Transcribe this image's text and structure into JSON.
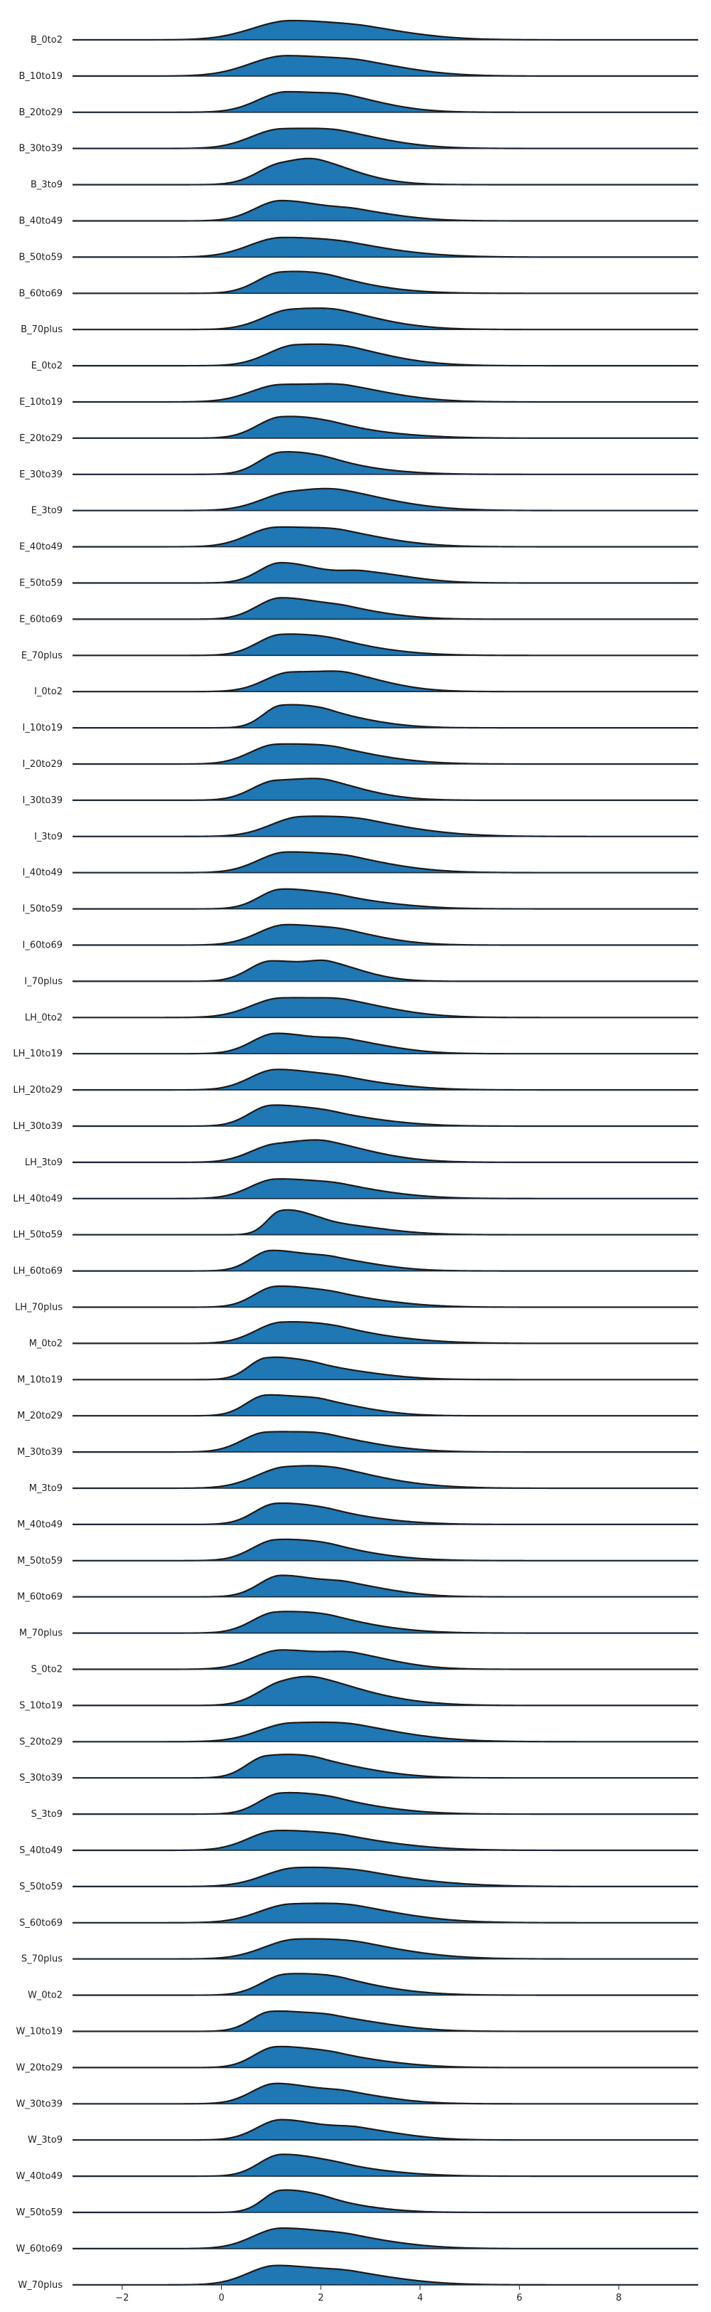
{
  "chart_data": {
    "type": "ridgeline",
    "title": "",
    "xlabel": "",
    "ylabel": "",
    "xlim": [
      -3,
      9.6
    ],
    "x_ticks": [
      -2,
      0,
      2,
      4,
      6,
      8
    ],
    "x_tick_labels": [
      "−2",
      "0",
      "2",
      "4",
      "6",
      "8"
    ],
    "fill_color": "#1f77b4",
    "line_color": "#1a1a1a",
    "grid": false,
    "series": [
      {
        "name": "B_0to2",
        "peaks": [
          [
            1.4,
            0.9,
            0.95
          ],
          [
            3.0,
            0.15,
            0.7
          ]
        ]
      },
      {
        "name": "B_10to19",
        "peaks": [
          [
            1.3,
            0.95,
            0.9
          ],
          [
            2.9,
            0.25,
            0.7
          ]
        ]
      },
      {
        "name": "B_20to29",
        "peaks": [
          [
            1.3,
            0.95,
            0.7
          ],
          [
            2.6,
            0.35,
            0.6
          ]
        ]
      },
      {
        "name": "B_30to39",
        "peaks": [
          [
            1.2,
            0.9,
            0.75
          ],
          [
            2.5,
            0.35,
            0.7
          ]
        ]
      },
      {
        "name": "B_3to9",
        "peaks": [
          [
            1.2,
            0.9,
            0.6
          ],
          [
            2.0,
            0.55,
            0.6
          ]
        ]
      },
      {
        "name": "B_40to49",
        "peaks": [
          [
            1.2,
            0.95,
            0.65
          ],
          [
            2.8,
            0.3,
            0.6
          ]
        ]
      },
      {
        "name": "B_50to59",
        "peaks": [
          [
            1.2,
            0.9,
            0.8
          ],
          [
            2.7,
            0.25,
            0.8
          ]
        ]
      },
      {
        "name": "B_60to69",
        "peaks": [
          [
            1.2,
            0.95,
            0.6
          ],
          [
            2.3,
            0.35,
            0.7
          ]
        ]
      },
      {
        "name": "B_70plus",
        "peaks": [
          [
            1.4,
            0.9,
            0.7
          ],
          [
            2.5,
            0.35,
            0.7
          ]
        ]
      },
      {
        "name": "E_0to2",
        "peaks": [
          [
            1.5,
            0.95,
            0.7
          ],
          [
            2.7,
            0.35,
            0.7
          ]
        ]
      },
      {
        "name": "E_10to19",
        "peaks": [
          [
            1.2,
            0.8,
            0.75
          ],
          [
            2.6,
            0.4,
            0.7
          ]
        ]
      },
      {
        "name": "E_20to29",
        "peaks": [
          [
            1.2,
            0.95,
            0.6
          ],
          [
            2.4,
            0.3,
            0.8
          ]
        ]
      },
      {
        "name": "E_30to39",
        "peaks": [
          [
            1.2,
            1.0,
            0.55
          ],
          [
            2.3,
            0.3,
            0.7
          ]
        ]
      },
      {
        "name": "E_3to9",
        "peaks": [
          [
            1.4,
            0.8,
            0.75
          ],
          [
            2.5,
            0.45,
            0.8
          ]
        ]
      },
      {
        "name": "E_40to49",
        "peaks": [
          [
            1.1,
            0.9,
            0.7
          ],
          [
            2.5,
            0.4,
            0.7
          ]
        ]
      },
      {
        "name": "E_50to59",
        "peaks": [
          [
            1.2,
            0.95,
            0.55
          ],
          [
            2.9,
            0.45,
            0.6
          ]
        ]
      },
      {
        "name": "E_60to69",
        "peaks": [
          [
            1.2,
            1.0,
            0.6
          ],
          [
            2.6,
            0.3,
            0.6
          ]
        ]
      },
      {
        "name": "E_70plus",
        "peaks": [
          [
            1.2,
            0.95,
            0.6
          ],
          [
            2.4,
            0.35,
            0.7
          ]
        ]
      },
      {
        "name": "I_0to2",
        "peaks": [
          [
            1.4,
            0.9,
            0.65
          ],
          [
            2.6,
            0.45,
            0.6
          ]
        ]
      },
      {
        "name": "I_10to19",
        "peaks": [
          [
            1.2,
            1.0,
            0.45
          ],
          [
            2.2,
            0.5,
            0.6
          ]
        ]
      },
      {
        "name": "I_20to29",
        "peaks": [
          [
            1.1,
            0.9,
            0.65
          ],
          [
            2.4,
            0.4,
            0.7
          ]
        ]
      },
      {
        "name": "I_30to39",
        "peaks": [
          [
            1.1,
            0.9,
            0.6
          ],
          [
            2.2,
            0.5,
            0.6
          ]
        ]
      },
      {
        "name": "I_3to9",
        "peaks": [
          [
            1.6,
            0.9,
            0.75
          ],
          [
            3.0,
            0.35,
            0.8
          ]
        ]
      },
      {
        "name": "I_40to49",
        "peaks": [
          [
            1.3,
            0.95,
            0.7
          ],
          [
            2.7,
            0.35,
            0.7
          ]
        ]
      },
      {
        "name": "I_50to59",
        "peaks": [
          [
            1.2,
            0.9,
            0.55
          ],
          [
            2.5,
            0.35,
            0.7
          ]
        ]
      },
      {
        "name": "I_60to69",
        "peaks": [
          [
            1.3,
            0.95,
            0.7
          ],
          [
            2.6,
            0.25,
            0.6
          ]
        ]
      },
      {
        "name": "I_70plus",
        "peaks": [
          [
            1.0,
            0.95,
            0.55
          ],
          [
            2.2,
            0.6,
            0.5
          ]
        ]
      },
      {
        "name": "LH_0to2",
        "peaks": [
          [
            1.2,
            0.9,
            0.75
          ],
          [
            2.6,
            0.4,
            0.7
          ]
        ]
      },
      {
        "name": "LH_10to19",
        "peaks": [
          [
            1.1,
            0.95,
            0.6
          ],
          [
            2.6,
            0.45,
            0.6
          ]
        ]
      },
      {
        "name": "LH_20to29",
        "peaks": [
          [
            1.1,
            0.95,
            0.65
          ],
          [
            2.6,
            0.3,
            0.7
          ]
        ]
      },
      {
        "name": "LH_30to39",
        "peaks": [
          [
            1.0,
            0.95,
            0.55
          ],
          [
            2.3,
            0.4,
            0.7
          ]
        ]
      },
      {
        "name": "LH_3to9",
        "peaks": [
          [
            1.1,
            0.8,
            0.65
          ],
          [
            2.2,
            0.55,
            0.7
          ]
        ]
      },
      {
        "name": "LH_40to49",
        "peaks": [
          [
            1.1,
            0.9,
            0.65
          ],
          [
            2.5,
            0.35,
            0.7
          ]
        ]
      },
      {
        "name": "LH_50to59",
        "peaks": [
          [
            1.2,
            1.0,
            0.35
          ],
          [
            2.1,
            0.5,
            0.7
          ]
        ]
      },
      {
        "name": "LH_60to69",
        "peaks": [
          [
            1.0,
            0.95,
            0.5
          ],
          [
            2.3,
            0.45,
            0.6
          ]
        ]
      },
      {
        "name": "LH_70plus",
        "peaks": [
          [
            1.1,
            0.95,
            0.55
          ],
          [
            2.4,
            0.4,
            0.7
          ]
        ]
      },
      {
        "name": "M_0to2",
        "peaks": [
          [
            1.2,
            0.95,
            0.65
          ],
          [
            2.5,
            0.35,
            0.8
          ]
        ]
      },
      {
        "name": "M_10to19",
        "peaks": [
          [
            0.9,
            0.95,
            0.45
          ],
          [
            2.0,
            0.5,
            0.7
          ]
        ]
      },
      {
        "name": "M_20to29",
        "peaks": [
          [
            0.9,
            0.95,
            0.5
          ],
          [
            2.1,
            0.5,
            0.6
          ]
        ]
      },
      {
        "name": "M_30to39",
        "peaks": [
          [
            0.9,
            0.9,
            0.6
          ],
          [
            2.2,
            0.5,
            0.7
          ]
        ]
      },
      {
        "name": "M_3to9",
        "peaks": [
          [
            1.3,
            0.95,
            0.75
          ],
          [
            2.5,
            0.35,
            0.8
          ]
        ]
      },
      {
        "name": "M_40to49",
        "peaks": [
          [
            1.1,
            0.95,
            0.55
          ],
          [
            2.3,
            0.35,
            0.7
          ]
        ]
      },
      {
        "name": "M_50to59",
        "peaks": [
          [
            1.1,
            0.95,
            0.6
          ],
          [
            2.3,
            0.35,
            0.7
          ]
        ]
      },
      {
        "name": "M_60to69",
        "peaks": [
          [
            1.2,
            1.0,
            0.55
          ],
          [
            2.6,
            0.45,
            0.6
          ]
        ]
      },
      {
        "name": "M_70plus",
        "peaks": [
          [
            1.1,
            0.95,
            0.6
          ],
          [
            2.3,
            0.4,
            0.7
          ]
        ]
      },
      {
        "name": "S_0to2",
        "peaks": [
          [
            1.2,
            0.9,
            0.7
          ],
          [
            2.7,
            0.45,
            0.6
          ]
        ]
      },
      {
        "name": "S_10to19",
        "peaks": [
          [
            1.2,
            0.8,
            0.6
          ],
          [
            2.0,
            0.75,
            0.8
          ]
        ]
      },
      {
        "name": "S_20to29",
        "peaks": [
          [
            1.4,
            0.85,
            0.8
          ],
          [
            2.8,
            0.35,
            0.8
          ]
        ]
      },
      {
        "name": "S_30to39",
        "peaks": [
          [
            0.9,
            0.95,
            0.5
          ],
          [
            2.0,
            0.6,
            0.7
          ]
        ]
      },
      {
        "name": "S_3to9",
        "peaks": [
          [
            1.2,
            0.95,
            0.55
          ],
          [
            2.4,
            0.4,
            0.7
          ]
        ]
      },
      {
        "name": "S_40to49",
        "peaks": [
          [
            1.1,
            0.9,
            0.7
          ],
          [
            2.6,
            0.35,
            0.8
          ]
        ]
      },
      {
        "name": "S_50to59",
        "peaks": [
          [
            1.5,
            0.85,
            0.8
          ],
          [
            3.0,
            0.3,
            0.9
          ]
        ]
      },
      {
        "name": "S_60to69",
        "peaks": [
          [
            1.4,
            0.85,
            0.8
          ],
          [
            2.8,
            0.35,
            0.8
          ]
        ]
      },
      {
        "name": "S_70plus",
        "peaks": [
          [
            1.5,
            0.9,
            0.8
          ],
          [
            2.9,
            0.3,
            0.8
          ]
        ]
      },
      {
        "name": "W_0to2",
        "peaks": [
          [
            1.3,
            0.95,
            0.6
          ],
          [
            2.5,
            0.4,
            0.7
          ]
        ]
      },
      {
        "name": "W_10to19",
        "peaks": [
          [
            1.0,
            0.9,
            0.5
          ],
          [
            2.3,
            0.55,
            0.7
          ]
        ]
      },
      {
        "name": "W_20to29",
        "peaks": [
          [
            1.1,
            0.95,
            0.55
          ],
          [
            2.4,
            0.4,
            0.7
          ]
        ]
      },
      {
        "name": "W_30to39",
        "peaks": [
          [
            1.1,
            0.95,
            0.6
          ],
          [
            2.6,
            0.35,
            0.6
          ]
        ]
      },
      {
        "name": "W_3to9",
        "peaks": [
          [
            1.2,
            0.95,
            0.6
          ],
          [
            2.8,
            0.4,
            0.6
          ]
        ]
      },
      {
        "name": "W_40to49",
        "peaks": [
          [
            1.2,
            1.0,
            0.55
          ],
          [
            2.5,
            0.3,
            0.7
          ]
        ]
      },
      {
        "name": "W_50to59",
        "peaks": [
          [
            1.2,
            1.0,
            0.45
          ],
          [
            2.2,
            0.35,
            0.6
          ]
        ]
      },
      {
        "name": "W_60to69",
        "peaks": [
          [
            1.2,
            0.95,
            0.7
          ],
          [
            2.7,
            0.3,
            0.7
          ]
        ]
      },
      {
        "name": "W_70plus",
        "peaks": [
          [
            1.1,
            0.9,
            0.7
          ],
          [
            2.7,
            0.35,
            0.7
          ]
        ]
      }
    ]
  }
}
